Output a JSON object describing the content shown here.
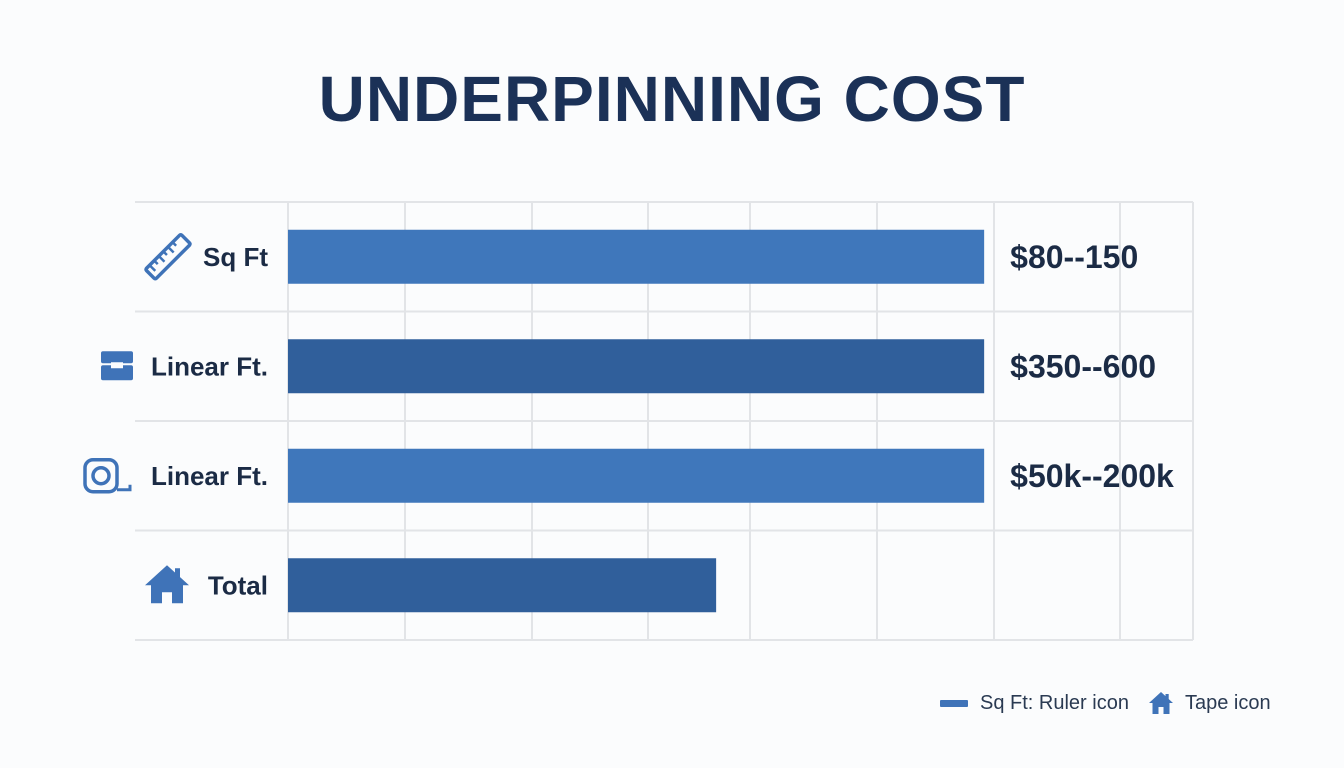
{
  "title": "UNDERPINNING COST",
  "colors": {
    "bar_light": "#3f77bb",
    "bar_dark": "#305f9b",
    "icon": "#3f73b8",
    "grid": "#e2e4e7",
    "text": "#1b2b45"
  },
  "chart_data": {
    "type": "bar",
    "orientation": "horizontal",
    "title": "UNDERPINNING COST",
    "categories": [
      "Sq Ft",
      "Linear Ft.",
      "Linear Ft.",
      "Total"
    ],
    "icons": [
      "ruler-icon",
      "briefcase-icon",
      "tape-measure-icon",
      "house-icon"
    ],
    "values": [
      1.0,
      1.0,
      1.0,
      0.615
    ],
    "value_labels": [
      "$80--150",
      "$350--600",
      "$50k--200k",
      ""
    ],
    "bar_shades": [
      "light",
      "dark",
      "light",
      "dark"
    ],
    "xlim": [
      0,
      1.3
    ],
    "grid": true,
    "legend_position": "bottom-right",
    "legend": [
      {
        "icon": "bar-swatch",
        "label": "Sq Ft: Ruler icon"
      },
      {
        "icon": "house-icon",
        "label": "Tape icon"
      }
    ]
  }
}
